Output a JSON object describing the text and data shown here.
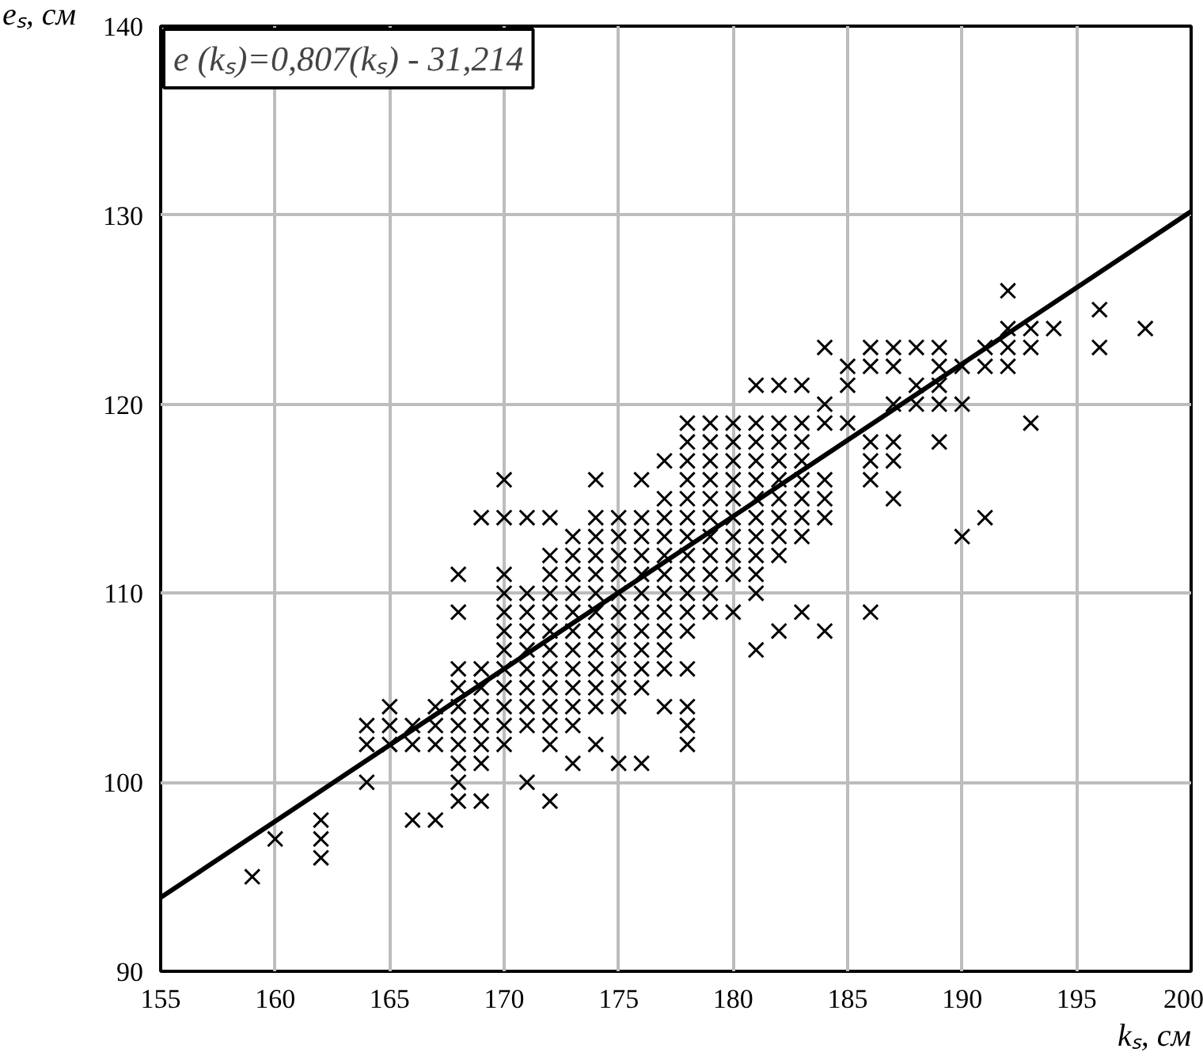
{
  "chart_data": {
    "type": "scatter",
    "xlabel": "kₛ, см",
    "ylabel": "eₛ, см",
    "annotations": [
      "e (kₛ)=0,807(kₛ) - 31,214"
    ],
    "xlim": [
      155,
      200
    ],
    "ylim": [
      90,
      140
    ],
    "xticks": [
      155,
      160,
      165,
      170,
      175,
      180,
      185,
      190,
      195,
      200
    ],
    "yticks": [
      90,
      100,
      110,
      120,
      130,
      140
    ],
    "grid": true,
    "series": [
      {
        "color": "#000000",
        "marker": "cross",
        "x": [
          159,
          160,
          162,
          162,
          162,
          164,
          164,
          164,
          165,
          165,
          165,
          166,
          166,
          166,
          167,
          167,
          167,
          167,
          168,
          168,
          168,
          168,
          168,
          168,
          168,
          168,
          168,
          168,
          169,
          169,
          169,
          169,
          169,
          169,
          169,
          169,
          170,
          170,
          170,
          170,
          170,
          170,
          170,
          170,
          170,
          170,
          170,
          170,
          171,
          171,
          171,
          171,
          171,
          171,
          171,
          171,
          171,
          171,
          172,
          172,
          172,
          172,
          172,
          172,
          172,
          172,
          172,
          172,
          172,
          172,
          172,
          173,
          173,
          173,
          173,
          173,
          173,
          173,
          173,
          173,
          173,
          173,
          173,
          174,
          174,
          174,
          174,
          174,
          174,
          174,
          174,
          174,
          174,
          174,
          174,
          174,
          175,
          175,
          175,
          175,
          175,
          175,
          175,
          175,
          175,
          175,
          175,
          175,
          176,
          176,
          176,
          176,
          176,
          176,
          176,
          176,
          176,
          176,
          176,
          176,
          177,
          177,
          177,
          177,
          177,
          177,
          177,
          177,
          177,
          177,
          177,
          177,
          178,
          178,
          178,
          178,
          178,
          178,
          178,
          178,
          178,
          178,
          178,
          178,
          178,
          178,
          178,
          178,
          179,
          179,
          179,
          179,
          179,
          179,
          179,
          179,
          179,
          179,
          179,
          180,
          180,
          180,
          180,
          180,
          180,
          180,
          180,
          180,
          180,
          181,
          181,
          181,
          181,
          181,
          181,
          181,
          181,
          181,
          181,
          181,
          181,
          182,
          182,
          182,
          182,
          182,
          182,
          182,
          182,
          182,
          182,
          183,
          183,
          183,
          183,
          183,
          183,
          183,
          183,
          183,
          184,
          184,
          184,
          184,
          184,
          184,
          184,
          185,
          185,
          185,
          186,
          186,
          186,
          186,
          186,
          186,
          187,
          187,
          187,
          187,
          187,
          187,
          188,
          188,
          188,
          189,
          189,
          189,
          189,
          189,
          190,
          190,
          190,
          191,
          191,
          191,
          192,
          192,
          192,
          192,
          193,
          193,
          193,
          194,
          196,
          196,
          198
        ],
        "values": [
          95,
          97,
          96,
          97,
          98,
          100,
          102,
          103,
          102,
          103,
          104,
          98,
          102,
          103,
          98,
          102,
          103,
          104,
          99,
          100,
          101,
          102,
          103,
          104,
          105,
          106,
          109,
          111,
          99,
          101,
          102,
          103,
          104,
          105,
          106,
          114,
          102,
          103,
          104,
          105,
          106,
          107,
          108,
          109,
          110,
          111,
          114,
          116,
          100,
          103,
          104,
          105,
          106,
          107,
          108,
          109,
          110,
          114,
          99,
          102,
          103,
          104,
          105,
          106,
          107,
          108,
          109,
          110,
          111,
          112,
          114,
          101,
          103,
          104,
          105,
          106,
          107,
          108,
          109,
          110,
          111,
          112,
          113,
          102,
          104,
          105,
          106,
          107,
          108,
          109,
          110,
          111,
          112,
          113,
          114,
          116,
          101,
          104,
          105,
          106,
          107,
          108,
          109,
          110,
          111,
          112,
          113,
          114,
          101,
          105,
          106,
          107,
          108,
          109,
          110,
          111,
          112,
          113,
          114,
          116,
          104,
          106,
          107,
          108,
          109,
          110,
          111,
          112,
          113,
          114,
          115,
          117,
          102,
          103,
          104,
          106,
          108,
          109,
          110,
          111,
          112,
          113,
          114,
          115,
          116,
          117,
          118,
          119,
          109,
          110,
          111,
          112,
          113,
          114,
          115,
          116,
          117,
          118,
          119,
          109,
          111,
          112,
          113,
          114,
          115,
          116,
          117,
          118,
          119,
          107,
          110,
          111,
          112,
          113,
          114,
          115,
          116,
          117,
          118,
          119,
          121,
          108,
          112,
          113,
          114,
          115,
          116,
          117,
          118,
          119,
          121,
          109,
          113,
          114,
          115,
          116,
          117,
          118,
          119,
          121,
          108,
          114,
          115,
          116,
          119,
          120,
          123,
          119,
          121,
          122,
          109,
          116,
          117,
          118,
          122,
          123,
          115,
          117,
          118,
          120,
          122,
          123,
          120,
          121,
          123,
          118,
          120,
          121,
          122,
          123,
          113,
          120,
          122,
          114,
          122,
          123,
          122,
          123,
          124,
          126,
          119,
          123,
          124,
          124,
          123,
          125,
          124
        ]
      },
      {
        "type": "line",
        "color": "#000000",
        "marker": "none",
        "line_style": "solid",
        "x": [
          155,
          200
        ],
        "values": [
          93.9,
          130.2
        ]
      }
    ]
  }
}
